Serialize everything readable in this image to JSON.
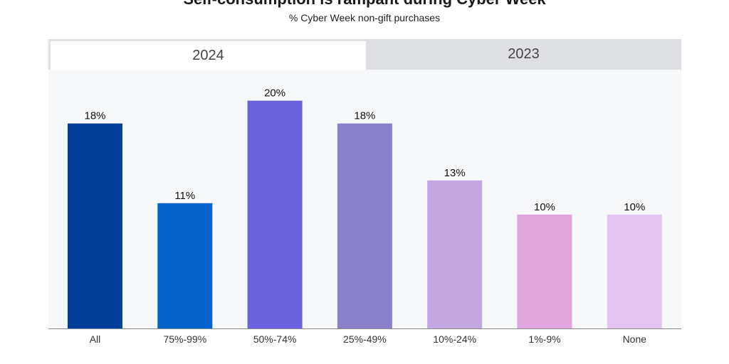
{
  "header": {
    "title": "Self-consumption is rampant during Cyber Week",
    "subtitle": "% Cyber Week non-gift purchases"
  },
  "tabs": [
    {
      "label": "2024",
      "active": true
    },
    {
      "label": "2023",
      "active": false
    }
  ],
  "chart_data": {
    "type": "bar",
    "categories": [
      "All",
      "75%-99%",
      "50%-74%",
      "25%-49%",
      "10%-24%",
      "1%-9%",
      "None"
    ],
    "values": [
      18,
      11,
      20,
      18,
      13,
      10,
      10
    ],
    "value_labels": [
      "18%",
      "11%",
      "20%",
      "18%",
      "13%",
      "10%",
      "10%"
    ],
    "colors": [
      "#023e9a",
      "#0563cc",
      "#6a62dd",
      "#8a80c9",
      "#c3a8e2",
      "#e0a5dd",
      "#e2c6f1"
    ],
    "ylim": [
      0,
      22.6
    ],
    "grid": false,
    "xlabel": "",
    "ylabel": ""
  }
}
